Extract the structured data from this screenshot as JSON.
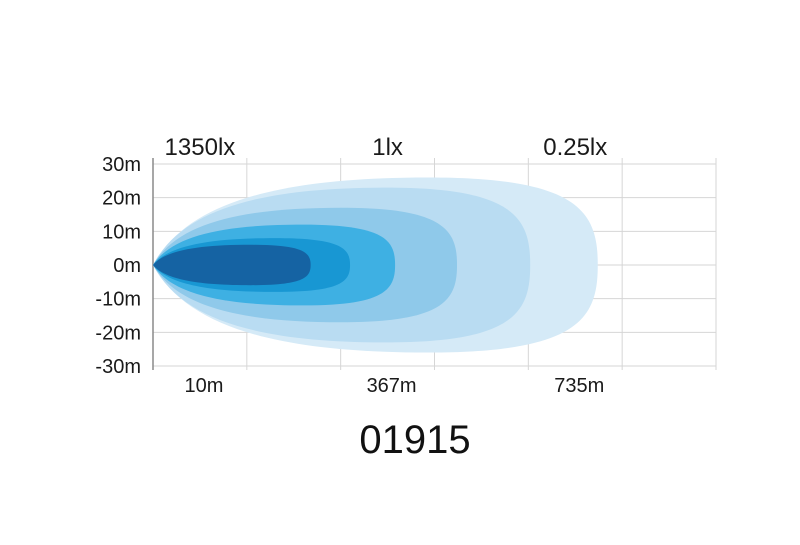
{
  "chart_data": {
    "type": "area",
    "code": "01915",
    "top_labels": [
      "1350lx",
      "1lx",
      "0.25lx"
    ],
    "y_ticks": [
      "30m",
      "20m",
      "10m",
      "0m",
      "-10m",
      "-20m",
      "-30m"
    ],
    "x_ticks": [
      "10m",
      "367m",
      "735m"
    ],
    "grid": true,
    "colors": {
      "grid": "#d6d6d6",
      "axis": "#8a8a8a"
    },
    "series": [
      {
        "reach": 0.79,
        "half_width": 26,
        "color": "#d5eaf7"
      },
      {
        "reach": 0.67,
        "half_width": 23,
        "color": "#b9dcf2"
      },
      {
        "reach": 0.54,
        "half_width": 17,
        "color": "#8fc9ea"
      },
      {
        "reach": 0.43,
        "half_width": 12,
        "color": "#3eb0e3"
      },
      {
        "reach": 0.35,
        "half_width": 8,
        "color": "#1897d3"
      },
      {
        "reach": 0.28,
        "half_width": 6,
        "color": "#1563a3"
      }
    ]
  }
}
